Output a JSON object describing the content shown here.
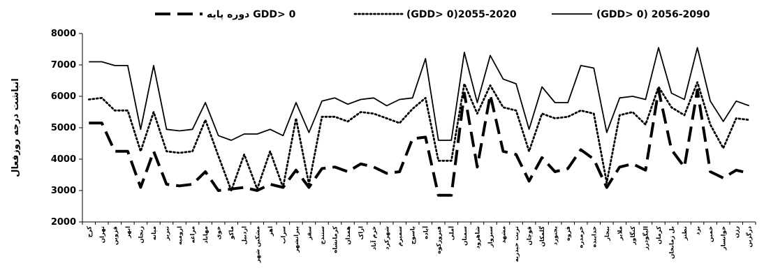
{
  "chart_data": {
    "type": "line",
    "title": "",
    "xlabel": "",
    "ylabel": "انباشت درجه روزفعال",
    "ylim": [
      2000,
      8000
    ],
    "yticks": [
      2000,
      3000,
      4000,
      5000,
      6000,
      7000,
      8000
    ],
    "grid": false,
    "legend_position": "top",
    "categories": [
      "کرج",
      "تهران",
      "قزوین",
      "ابهر",
      "زنجان",
      "میانه",
      "تبریز",
      "ارومیه",
      "مراغه",
      "مهاباد",
      "خوی",
      "ماکو",
      "اردبیل",
      "مشکین شهر",
      "اهر",
      "سراب",
      "پیرانشهر",
      "سقز",
      "سنندج",
      "کرمانشاه",
      "همدان",
      "اراک",
      "خرم آباد",
      "شهرکرد",
      "سمیرم",
      "یاسوج",
      "آباده",
      "فیروزکوه",
      "آملی",
      "سمنان",
      "شاهرود",
      "سبزوار",
      "مشهد",
      "تربت حیدریه",
      "قوچان",
      "گلمکان",
      "بجنورد",
      "قروه",
      "خرمدره",
      "خدابنده",
      "بیجار",
      "ملایر",
      "کنگاور",
      "الیگودرز",
      "کرمان",
      "بل زمانخان",
      "نطنز",
      "یزد",
      "خمین",
      "خوانسار",
      "رزن",
      "درگزین"
    ],
    "series": [
      {
        "name": "دوره پایه GDD> 0",
        "style": "dashed",
        "values": [
          5150,
          5150,
          4250,
          4250,
          3100,
          4250,
          3200,
          3150,
          3200,
          3600,
          3000,
          3050,
          3100,
          3000,
          3200,
          3100,
          3650,
          3100,
          3700,
          3750,
          3600,
          3850,
          3750,
          3550,
          3600,
          4650,
          4700,
          2850,
          2850,
          6100,
          3750,
          6050,
          4250,
          4150,
          3300,
          4050,
          3600,
          3700,
          4300,
          4000,
          3100,
          3750,
          3850,
          3650,
          6200,
          4300,
          3750,
          6200,
          3600,
          3400,
          3650,
          3550
        ],
        "color": "#000000"
      },
      {
        "name": "(GDD> 0)2055-2020",
        "style": "dotted",
        "values": [
          5900,
          5950,
          5550,
          5550,
          4250,
          5500,
          4250,
          4200,
          4250,
          5250,
          4100,
          3000,
          4150,
          3050,
          4250,
          3100,
          5300,
          3200,
          5350,
          5350,
          5200,
          5500,
          5450,
          5300,
          5150,
          5600,
          5950,
          3950,
          3950,
          6400,
          5450,
          6350,
          5650,
          5550,
          4250,
          5450,
          5300,
          5350,
          5550,
          5450,
          3250,
          5400,
          5500,
          5100,
          6300,
          5650,
          5400,
          6450,
          5100,
          4350,
          5300,
          5250
        ],
        "color": "#000000"
      },
      {
        "name": "(GDD> 0) 2056-2090",
        "style": "solid",
        "values": [
          7100,
          7100,
          6980,
          6980,
          4950,
          6980,
          4950,
          4900,
          4950,
          5800,
          4750,
          4600,
          4800,
          4800,
          4950,
          4750,
          5800,
          4850,
          5850,
          5950,
          5750,
          5900,
          5950,
          5700,
          5900,
          5950,
          7200,
          4600,
          4600,
          7400,
          5800,
          7300,
          6550,
          6400,
          4950,
          6300,
          5800,
          5800,
          6980,
          6900,
          4850,
          5950,
          6000,
          5900,
          7550,
          6100,
          5900,
          7550,
          5850,
          5200,
          5850,
          5700
        ],
        "color": "#000000"
      }
    ]
  }
}
